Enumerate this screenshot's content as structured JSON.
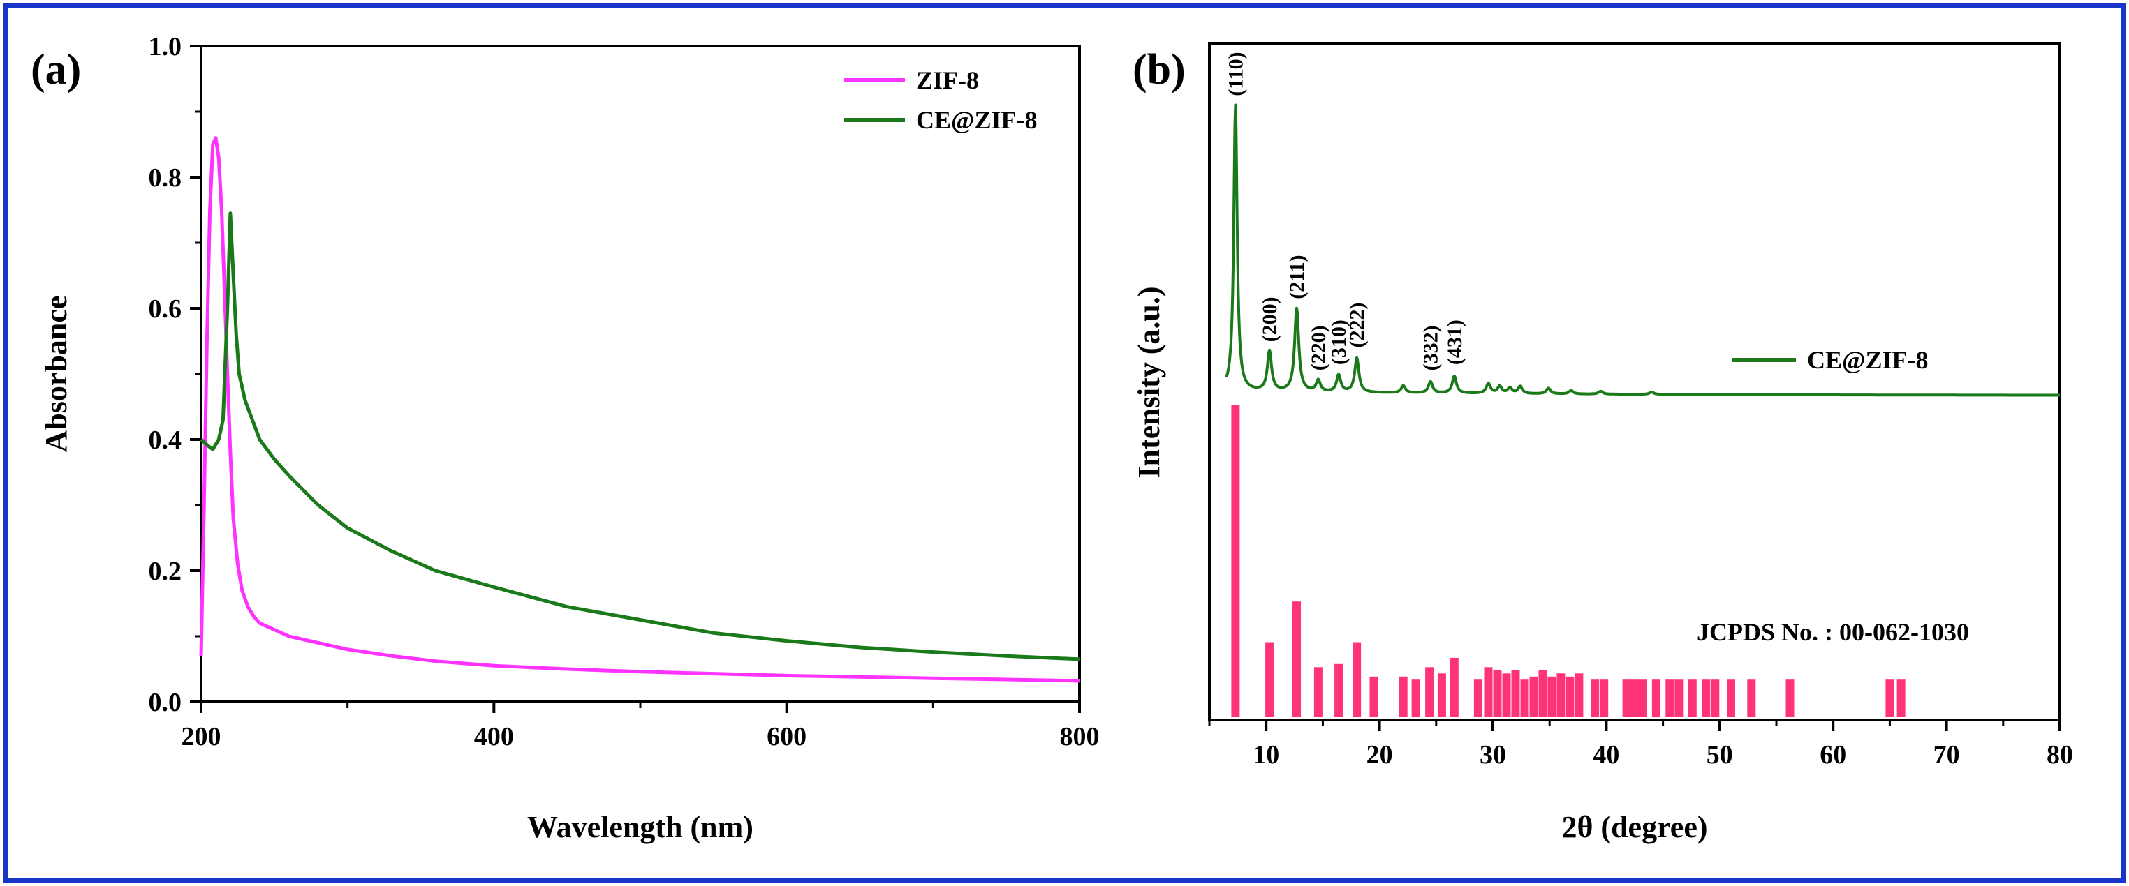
{
  "chart_data": [
    {
      "panel_label": "(a)",
      "type": "line",
      "xlabel": "Wavelength (nm)",
      "ylabel": "Absorbance",
      "xlim": [
        200,
        800
      ],
      "ylim": [
        0,
        1.0
      ],
      "x_ticks": [
        "200",
        "400",
        "600",
        "800"
      ],
      "y_ticks": [
        "0.0",
        "0.2",
        "0.4",
        "0.6",
        "0.8",
        "1.0"
      ],
      "legend": [
        "ZIF-8",
        "CE@ZIF-8"
      ],
      "series": [
        {
          "name": "ZIF-8",
          "color": "#ff33ff",
          "x": [
            200,
            202,
            204,
            206,
            208,
            210,
            212,
            214,
            216,
            218,
            220,
            222,
            225,
            228,
            232,
            236,
            240,
            250,
            260,
            270,
            280,
            300,
            330,
            360,
            400,
            450,
            500,
            550,
            600,
            650,
            700,
            750,
            800
          ],
          "y": [
            0.07,
            0.3,
            0.55,
            0.75,
            0.85,
            0.86,
            0.83,
            0.75,
            0.63,
            0.5,
            0.38,
            0.28,
            0.21,
            0.17,
            0.145,
            0.13,
            0.12,
            0.11,
            0.1,
            0.095,
            0.09,
            0.08,
            0.07,
            0.062,
            0.055,
            0.05,
            0.046,
            0.043,
            0.04,
            0.038,
            0.036,
            0.034,
            0.032
          ]
        },
        {
          "name": "CE@ZIF-8",
          "color": "#1a7a1a",
          "x": [
            200,
            205,
            208,
            212,
            215,
            218,
            220,
            222,
            224,
            226,
            230,
            235,
            240,
            250,
            260,
            280,
            300,
            330,
            360,
            400,
            450,
            500,
            550,
            600,
            650,
            700,
            750,
            800
          ],
          "y": [
            0.4,
            0.39,
            0.385,
            0.4,
            0.43,
            0.6,
            0.745,
            0.65,
            0.56,
            0.5,
            0.46,
            0.43,
            0.4,
            0.37,
            0.345,
            0.3,
            0.265,
            0.23,
            0.2,
            0.175,
            0.145,
            0.125,
            0.105,
            0.093,
            0.083,
            0.076,
            0.07,
            0.065
          ]
        }
      ]
    },
    {
      "panel_label": "(b)",
      "type": "line",
      "xlabel": "2θ (degree)",
      "ylabel": "Intensity (a.u.)",
      "xlim": [
        5,
        80
      ],
      "x_ticks": [
        "10",
        "20",
        "30",
        "40",
        "50",
        "60",
        "70",
        "80"
      ],
      "legend": [
        "CE@ZIF-8"
      ],
      "reference_label": "JCPDS No. : 00-062-1030",
      "series": [
        {
          "name": "CE@ZIF-8",
          "color": "#1a7a1a",
          "peaks": [
            {
              "x": 7.3,
              "h": 1.0,
              "label": "(110)"
            },
            {
              "x": 10.3,
              "h": 0.14,
              "label": "(200)"
            },
            {
              "x": 12.7,
              "h": 0.29,
              "label": "(211)"
            },
            {
              "x": 14.6,
              "h": 0.04,
              "label": "(220)"
            },
            {
              "x": 16.4,
              "h": 0.06,
              "label": "(310)"
            },
            {
              "x": 18.0,
              "h": 0.12,
              "label": "(222)"
            },
            {
              "x": 22.1,
              "h": 0.025,
              "label": ""
            },
            {
              "x": 24.5,
              "h": 0.04,
              "label": "(332)"
            },
            {
              "x": 26.6,
              "h": 0.06,
              "label": "(431)"
            },
            {
              "x": 29.6,
              "h": 0.035,
              "label": ""
            },
            {
              "x": 30.6,
              "h": 0.025,
              "label": ""
            },
            {
              "x": 31.5,
              "h": 0.02,
              "label": ""
            },
            {
              "x": 32.4,
              "h": 0.025,
              "label": ""
            },
            {
              "x": 34.9,
              "h": 0.02,
              "label": ""
            },
            {
              "x": 36.9,
              "h": 0.012,
              "label": ""
            },
            {
              "x": 39.5,
              "h": 0.01,
              "label": ""
            },
            {
              "x": 44.0,
              "h": 0.008,
              "label": ""
            }
          ]
        },
        {
          "name": "JCPDS reference",
          "color": "#ff3377",
          "type": "stick",
          "sticks": [
            {
              "x": 7.3,
              "h": 1.0
            },
            {
              "x": 10.3,
              "h": 0.24
            },
            {
              "x": 12.7,
              "h": 0.37
            },
            {
              "x": 14.6,
              "h": 0.16
            },
            {
              "x": 16.4,
              "h": 0.17
            },
            {
              "x": 18.0,
              "h": 0.24
            },
            {
              "x": 19.5,
              "h": 0.13
            },
            {
              "x": 22.1,
              "h": 0.13
            },
            {
              "x": 23.2,
              "h": 0.12
            },
            {
              "x": 24.4,
              "h": 0.16
            },
            {
              "x": 25.5,
              "h": 0.14
            },
            {
              "x": 26.6,
              "h": 0.19
            },
            {
              "x": 28.7,
              "h": 0.12
            },
            {
              "x": 29.6,
              "h": 0.16
            },
            {
              "x": 30.4,
              "h": 0.15
            },
            {
              "x": 31.2,
              "h": 0.14
            },
            {
              "x": 32.0,
              "h": 0.15
            },
            {
              "x": 32.8,
              "h": 0.12
            },
            {
              "x": 33.6,
              "h": 0.13
            },
            {
              "x": 34.4,
              "h": 0.15
            },
            {
              "x": 35.2,
              "h": 0.13
            },
            {
              "x": 36.0,
              "h": 0.14
            },
            {
              "x": 36.8,
              "h": 0.13
            },
            {
              "x": 37.6,
              "h": 0.14
            },
            {
              "x": 39.0,
              "h": 0.12
            },
            {
              "x": 39.8,
              "h": 0.12
            },
            {
              "x": 41.8,
              "h": 0.12
            },
            {
              "x": 42.5,
              "h": 0.12
            },
            {
              "x": 43.2,
              "h": 0.12
            },
            {
              "x": 44.4,
              "h": 0.12
            },
            {
              "x": 45.6,
              "h": 0.12
            },
            {
              "x": 46.4,
              "h": 0.12
            },
            {
              "x": 47.6,
              "h": 0.12
            },
            {
              "x": 48.8,
              "h": 0.12
            },
            {
              "x": 49.6,
              "h": 0.12
            },
            {
              "x": 51.0,
              "h": 0.12
            },
            {
              "x": 52.8,
              "h": 0.12
            },
            {
              "x": 56.2,
              "h": 0.12
            },
            {
              "x": 65.0,
              "h": 0.12
            },
            {
              "x": 66.0,
              "h": 0.12
            }
          ]
        }
      ]
    }
  ]
}
